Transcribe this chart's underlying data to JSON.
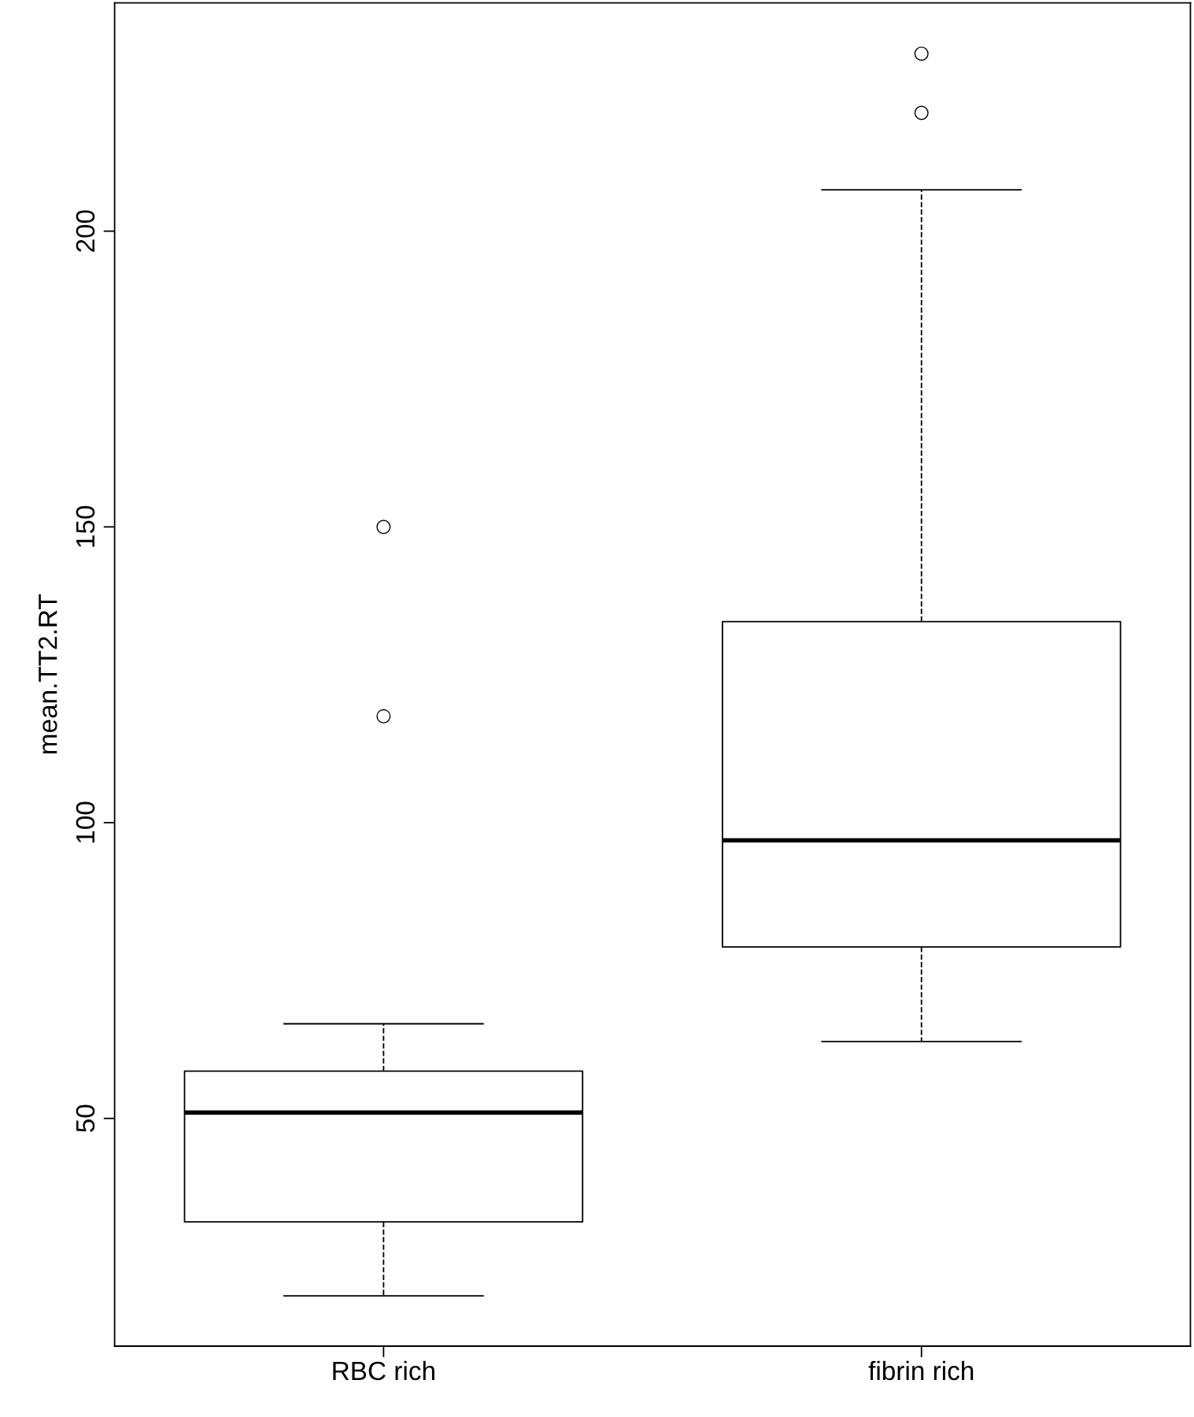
{
  "chart_data": {
    "type": "box",
    "ylabel": "mean.TT2.RT",
    "categories": [
      "RBC rich",
      "fibrin rich"
    ],
    "boxes": [
      {
        "low": 20,
        "q1": 32.5,
        "median": 51,
        "q3": 58,
        "high": 66,
        "outliers": [
          150,
          118
        ]
      },
      {
        "low": 63,
        "q1": 79,
        "median": 97,
        "q3": 134,
        "high": 207,
        "outliers": [
          230,
          220
        ]
      }
    ],
    "ylim": [
      11.5,
      238.6
    ],
    "yticks": [
      50,
      100,
      150,
      200
    ],
    "grid": false,
    "line_style": "dashed"
  }
}
